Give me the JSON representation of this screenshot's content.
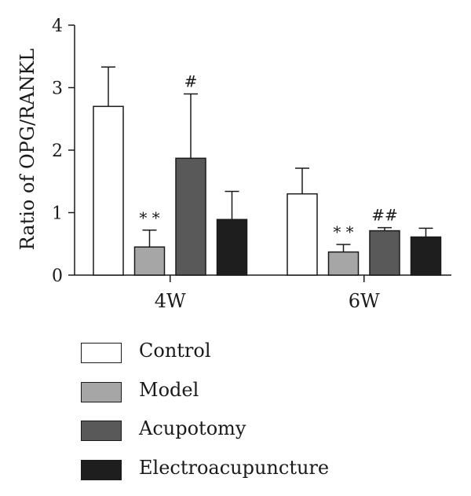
{
  "chart_data": {
    "type": "bar",
    "categories": [
      "4W",
      "6W"
    ],
    "ylabel": "Ratio of OPG/RANKL",
    "ylim": [
      0,
      4
    ],
    "yticks": [
      "0",
      "1",
      "2",
      "3",
      "4"
    ],
    "grid": false,
    "legend_position": "bottom",
    "series": [
      {
        "name": "Control",
        "color": "#ffffff",
        "values": [
          2.7,
          1.3
        ],
        "errors": [
          0.63,
          0.41
        ],
        "annotations": [
          "",
          ""
        ]
      },
      {
        "name": "Model",
        "color": "#a6a6a6",
        "values": [
          0.45,
          0.37
        ],
        "errors": [
          0.27,
          0.12
        ],
        "annotations": [
          "* *",
          "* *"
        ]
      },
      {
        "name": "Acupotomy",
        "color": "#595959",
        "values": [
          1.87,
          0.71
        ],
        "errors": [
          1.03,
          0.05
        ],
        "annotations": [
          "#",
          "##"
        ]
      },
      {
        "name": "Electroacupuncture",
        "color": "#1e1e1e",
        "values": [
          0.89,
          0.61
        ],
        "errors": [
          0.45,
          0.14
        ],
        "annotations": [
          "",
          ""
        ]
      }
    ]
  }
}
